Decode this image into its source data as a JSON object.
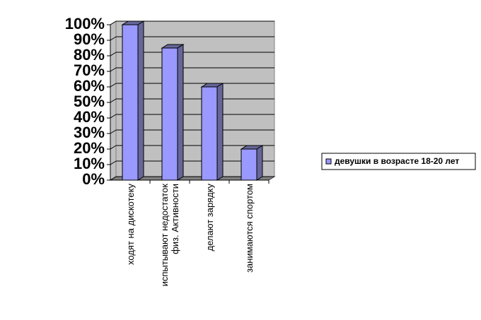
{
  "chart_data": {
    "type": "bar",
    "categories": [
      "ходят на дискотеку",
      "испытывают недостаток\nфиз. Активности",
      "делают зарядку",
      "занимаются спортом"
    ],
    "series": [
      {
        "name": "девушки в возрасте 18-20 лет",
        "color": "#9999ff",
        "values": [
          100,
          85,
          60,
          20
        ]
      }
    ],
    "ylim": [
      0,
      100
    ],
    "yticks": [
      {
        "value": 0,
        "label": "0%"
      },
      {
        "value": 10,
        "label": "10%"
      },
      {
        "value": 20,
        "label": "20%"
      },
      {
        "value": 30,
        "label": "30%"
      },
      {
        "value": 40,
        "label": "40%"
      },
      {
        "value": 50,
        "label": "50%"
      },
      {
        "value": 60,
        "label": "60%"
      },
      {
        "value": 70,
        "label": "70%"
      },
      {
        "value": 80,
        "label": "80%"
      },
      {
        "value": 90,
        "label": "90%"
      },
      {
        "value": 100,
        "label": "100%"
      }
    ],
    "grid": true,
    "legend": "right"
  }
}
